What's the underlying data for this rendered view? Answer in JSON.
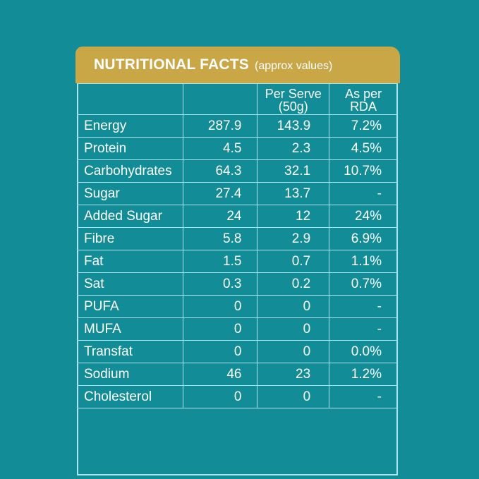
{
  "header": {
    "title": "NUTRITIONAL FACTS",
    "subtitle": "(approx values)"
  },
  "columns": {
    "name": "",
    "per_100": "",
    "per_serve_line1": "Per Serve",
    "per_serve_line2": "(50g)",
    "rda_line1": "As per",
    "rda_line2": "RDA"
  },
  "rows": [
    {
      "name": "Energy",
      "per_100": "287.9",
      "per_serve": "143.9",
      "rda": "7.2%"
    },
    {
      "name": "Protein",
      "per_100": "4.5",
      "per_serve": "2.3",
      "rda": "4.5%"
    },
    {
      "name": "Carbohydrates",
      "per_100": "64.3",
      "per_serve": "32.1",
      "rda": "10.7%"
    },
    {
      "name": "Sugar",
      "per_100": "27.4",
      "per_serve": "13.7",
      "rda": "-"
    },
    {
      "name": "Added Sugar",
      "per_100": "24",
      "per_serve": "12",
      "rda": "24%"
    },
    {
      "name": "Fibre",
      "per_100": "5.8",
      "per_serve": "2.9",
      "rda": "6.9%"
    },
    {
      "name": "Fat",
      "per_100": "1.5",
      "per_serve": "0.7",
      "rda": "1.1%"
    },
    {
      "name": "Sat",
      "per_100": "0.3",
      "per_serve": "0.2",
      "rda": "0.7%"
    },
    {
      "name": "PUFA",
      "per_100": "0",
      "per_serve": "0",
      "rda": "-"
    },
    {
      "name": "MUFA",
      "per_100": "0",
      "per_serve": "0",
      "rda": "-"
    },
    {
      "name": "Transfat",
      "per_100": "0",
      "per_serve": "0",
      "rda": "0.0%"
    },
    {
      "name": "Sodium",
      "per_100": "46",
      "per_serve": "23",
      "rda": "1.2%"
    },
    {
      "name": "Cholesterol",
      "per_100": "0",
      "per_serve": "0",
      "rda": "-"
    }
  ],
  "colors": {
    "background": "#128d98",
    "header": "#c9a747",
    "grid": "#a9e7ec",
    "text": "#ffffff"
  }
}
